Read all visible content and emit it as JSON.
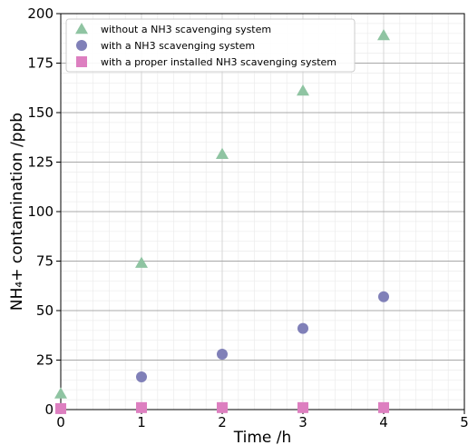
{
  "chart_data": {
    "type": "scatter",
    "xlabel": "Time /h",
    "ylabel": "NH₄+ contamination /ppb",
    "xlim": [
      0,
      5
    ],
    "ylim": [
      0,
      200
    ],
    "x_ticks": [
      "0",
      "1",
      "2",
      "3",
      "4",
      "5"
    ],
    "y_ticks": [
      "0",
      "25",
      "50",
      "75",
      "100",
      "125",
      "150",
      "175",
      "200"
    ],
    "grid": true,
    "legend_position": "top-left",
    "series": [
      {
        "name": "without a NH3 scavenging system",
        "marker": "triangle",
        "color": "#8fc4a2",
        "x": [
          0,
          1,
          2,
          3,
          4
        ],
        "y": [
          8,
          74,
          129,
          161,
          189
        ]
      },
      {
        "name": "with a NH3 scavenging system",
        "marker": "circle",
        "color": "#8080b8",
        "x": [
          0,
          1,
          2,
          3,
          4
        ],
        "y": [
          0.5,
          16.5,
          28,
          41,
          57
        ]
      },
      {
        "name": "with a proper installed NH3 scavenging system",
        "marker": "square",
        "color": "#dd7fc0",
        "x": [
          0,
          1,
          2,
          3,
          4
        ],
        "y": [
          0.5,
          1,
          1,
          1,
          1
        ]
      }
    ]
  }
}
